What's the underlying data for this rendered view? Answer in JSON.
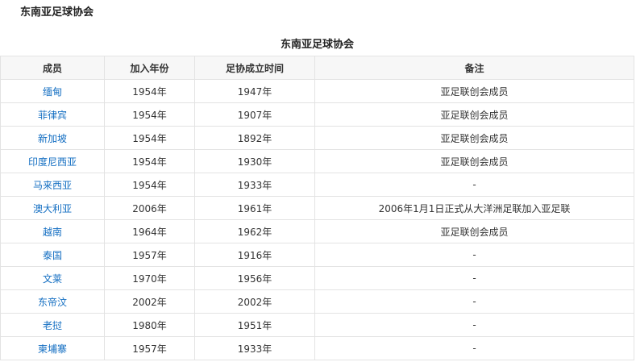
{
  "page_title": "东南亚足球协会",
  "table": {
    "caption": "东南亚足球协会",
    "headers": [
      "成员",
      "加入年份",
      "足协成立时间",
      "备注"
    ],
    "rows": [
      [
        "缅甸",
        "1954年",
        "1947年",
        "亚足联创会成员"
      ],
      [
        "菲律宾",
        "1954年",
        "1907年",
        "亚足联创会成员"
      ],
      [
        "新加坡",
        "1954年",
        "1892年",
        "亚足联创会成员"
      ],
      [
        "印度尼西亚",
        "1954年",
        "1930年",
        "亚足联创会成员"
      ],
      [
        "马来西亚",
        "1954年",
        "1933年",
        "-"
      ],
      [
        "澳大利亚",
        "2006年",
        "1961年",
        "2006年1月1日正式从大洋洲足联加入亚足联"
      ],
      [
        "越南",
        "1964年",
        "1962年",
        "亚足联创会成员"
      ],
      [
        "泰国",
        "1957年",
        "1916年",
        "-"
      ],
      [
        "文莱",
        "1970年",
        "1956年",
        "-"
      ],
      [
        "东帝汶",
        "2002年",
        "2002年",
        "-"
      ],
      [
        "老挝",
        "1980年",
        "1951年",
        "-"
      ],
      [
        "柬埔寨",
        "1957年",
        "1933年",
        "-"
      ]
    ]
  },
  "colors": {
    "link": "#136ec2",
    "header_bg": "#f7f7f7",
    "border": "#e3e3e3"
  }
}
